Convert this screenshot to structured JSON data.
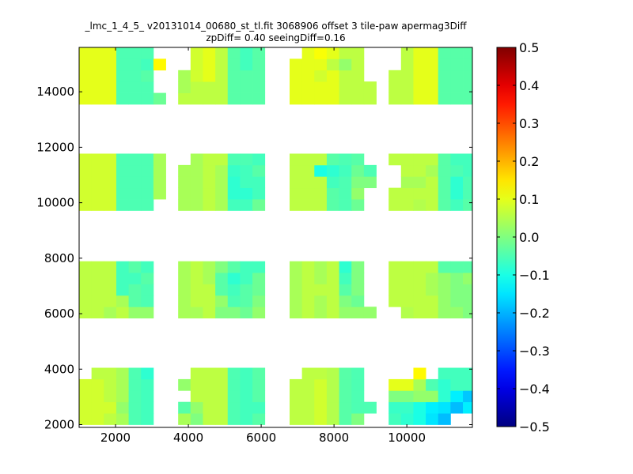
{
  "chart_data": {
    "type": "heatmap",
    "title": "_lmc_1_4_5_ v20131014_00680_st_tl.fit 3068906 offset 3 tile-paw apermag3Diff",
    "subtitle": "zpDiff= 0.40 seeingDiff=0.16",
    "xlabel": "",
    "ylabel": "",
    "xlim": [
      1000,
      11800
    ],
    "ylim": [
      1900,
      15600
    ],
    "xticks": [
      2000,
      4000,
      6000,
      8000,
      10000
    ],
    "yticks": [
      2000,
      4000,
      6000,
      8000,
      10000,
      12000,
      14000
    ],
    "colorbar": {
      "colormap": "jet",
      "range": [
        -0.5,
        0.5
      ],
      "ticks": [
        0.5,
        0.4,
        0.3,
        0.2,
        0.1,
        0.0,
        -0.1,
        -0.2,
        -0.3,
        -0.4,
        -0.5
      ],
      "tick_labels": [
        "0.5",
        "0.4",
        "0.3",
        "0.2",
        "0.1",
        "0.0",
        "−0.1",
        "−0.2",
        "−0.3",
        "−0.4",
        "−0.5"
      ]
    },
    "cell_size": [
      340,
      410
    ],
    "columns_x0": [
      1000,
      1340,
      1680,
      2020,
      2360,
      2700,
      3040,
      3720,
      4060,
      4400,
      4740,
      5080,
      5420,
      5760,
      6780,
      7120,
      7460,
      7800,
      8140,
      8480,
      8820,
      9500,
      9840,
      10180,
      10520,
      10860,
      11200,
      11540
    ],
    "rows_y0": [
      2000,
      2410,
      2820,
      3230,
      3640,
      5840,
      6250,
      6660,
      7070,
      7480,
      9720,
      10130,
      10540,
      10950,
      11360,
      13550,
      13960,
      14370,
      14780,
      15190
    ],
    "z_rows": [
      [
        0.08,
        0.08,
        0.06,
        0.04,
        -0.05,
        -0.06,
        null,
        0.04,
        0.0,
        0.06,
        0.06,
        -0.05,
        -0.06,
        -0.04,
        0.06,
        0.06,
        0.08,
        0.05,
        -0.04,
        0.0,
        null,
        -0.06,
        -0.08,
        -0.1,
        -0.15,
        -0.19,
        null,
        null
      ],
      [
        0.08,
        0.08,
        0.08,
        0.02,
        -0.05,
        -0.06,
        null,
        -0.04,
        0.02,
        0.06,
        0.06,
        -0.05,
        -0.06,
        -0.06,
        0.06,
        0.06,
        0.08,
        0.05,
        -0.04,
        -0.05,
        -0.05,
        -0.07,
        -0.07,
        -0.1,
        -0.14,
        -0.15,
        -0.19,
        -0.14
      ],
      [
        0.08,
        0.08,
        0.06,
        0.04,
        -0.05,
        -0.06,
        null,
        null,
        0.06,
        0.06,
        0.06,
        -0.05,
        -0.06,
        -0.04,
        0.06,
        0.06,
        0.08,
        0.05,
        -0.04,
        -0.05,
        null,
        0.0,
        0.0,
        0.02,
        0.02,
        -0.08,
        -0.14,
        -0.18
      ],
      [
        0.08,
        0.08,
        0.06,
        0.04,
        -0.05,
        -0.06,
        null,
        0.02,
        0.06,
        0.06,
        0.06,
        -0.05,
        -0.06,
        -0.04,
        0.06,
        0.06,
        0.08,
        0.05,
        -0.04,
        -0.05,
        null,
        0.1,
        0.1,
        0.04,
        -0.05,
        -0.08,
        -0.06,
        -0.06
      ],
      [
        null,
        0.06,
        0.06,
        0.04,
        -0.05,
        -0.08,
        null,
        null,
        0.06,
        0.06,
        0.06,
        -0.05,
        -0.06,
        -0.04,
        null,
        0.06,
        0.06,
        0.05,
        -0.04,
        -0.05,
        null,
        null,
        null,
        0.13,
        null,
        -0.06,
        -0.06,
        -0.06
      ],
      [
        0.06,
        0.06,
        0.04,
        0.06,
        0.02,
        0.02,
        null,
        0.04,
        0.04,
        0.06,
        0.0,
        0.0,
        -0.02,
        0.02,
        0.04,
        0.06,
        0.04,
        0.06,
        0.02,
        0.02,
        0.02,
        null,
        0.05,
        0.06,
        0.06,
        0.02,
        0.02,
        0.0
      ],
      [
        0.06,
        0.06,
        0.06,
        0.04,
        -0.04,
        -0.05,
        null,
        0.04,
        0.06,
        0.06,
        0.02,
        -0.05,
        -0.04,
        0.0,
        0.04,
        0.06,
        0.04,
        0.06,
        0.0,
        -0.02,
        null,
        0.06,
        0.06,
        0.06,
        0.06,
        0.02,
        0.0,
        0.0
      ],
      [
        0.06,
        0.06,
        0.06,
        -0.06,
        -0.04,
        -0.05,
        null,
        0.04,
        0.06,
        0.06,
        -0.04,
        -0.06,
        -0.04,
        -0.02,
        0.04,
        0.06,
        0.06,
        0.06,
        -0.04,
        0.0,
        null,
        0.06,
        0.06,
        0.06,
        0.04,
        0.02,
        0.0,
        0.0
      ],
      [
        0.06,
        0.06,
        0.06,
        -0.06,
        -0.06,
        -0.04,
        null,
        0.04,
        0.06,
        0.04,
        -0.04,
        -0.08,
        -0.06,
        -0.02,
        0.04,
        0.06,
        0.04,
        0.06,
        -0.06,
        0.0,
        null,
        0.06,
        0.06,
        0.06,
        0.04,
        0.02,
        0.0,
        0.02
      ],
      [
        0.06,
        0.06,
        0.06,
        -0.06,
        -0.04,
        -0.06,
        null,
        0.04,
        0.06,
        0.04,
        0.0,
        -0.04,
        -0.06,
        -0.06,
        0.04,
        0.06,
        0.04,
        0.06,
        -0.08,
        0.0,
        null,
        0.06,
        0.06,
        0.06,
        0.06,
        -0.04,
        -0.04,
        -0.04
      ],
      [
        0.08,
        0.08,
        0.08,
        -0.05,
        -0.05,
        -0.05,
        null,
        0.04,
        0.04,
        0.06,
        0.04,
        -0.06,
        -0.06,
        -0.02,
        0.06,
        0.06,
        0.06,
        -0.04,
        -0.05,
        -0.02,
        null,
        0.06,
        0.06,
        0.05,
        0.06,
        -0.04,
        -0.06,
        -0.04
      ],
      [
        0.08,
        0.08,
        0.08,
        -0.05,
        -0.05,
        -0.05,
        0.04,
        0.04,
        0.04,
        0.06,
        0.04,
        -0.08,
        -0.08,
        -0.06,
        0.06,
        0.06,
        0.06,
        -0.04,
        -0.05,
        0.02,
        null,
        0.06,
        0.06,
        0.06,
        0.06,
        -0.04,
        -0.08,
        -0.05
      ],
      [
        0.08,
        0.08,
        0.08,
        -0.05,
        -0.05,
        -0.05,
        0.04,
        0.04,
        0.04,
        0.06,
        0.04,
        -0.08,
        -0.06,
        -0.06,
        0.06,
        0.06,
        0.06,
        -0.06,
        -0.05,
        0.0,
        0.0,
        null,
        0.04,
        0.04,
        0.06,
        -0.04,
        -0.08,
        -0.05
      ],
      [
        0.08,
        0.08,
        0.08,
        -0.05,
        -0.05,
        -0.05,
        0.04,
        0.04,
        0.04,
        0.06,
        0.04,
        -0.07,
        -0.06,
        -0.04,
        0.06,
        0.06,
        -0.1,
        -0.08,
        -0.06,
        -0.02,
        -0.05,
        null,
        0.06,
        0.06,
        0.04,
        -0.04,
        -0.05,
        -0.06
      ],
      [
        0.08,
        0.08,
        0.08,
        -0.05,
        -0.05,
        -0.05,
        0.04,
        null,
        0.04,
        0.06,
        0.06,
        -0.05,
        -0.05,
        -0.06,
        0.06,
        0.06,
        0.06,
        -0.04,
        -0.05,
        -0.04,
        null,
        0.06,
        0.06,
        0.06,
        0.06,
        -0.04,
        -0.06,
        -0.06
      ],
      [
        0.1,
        0.1,
        0.1,
        -0.05,
        -0.05,
        -0.05,
        -0.02,
        0.06,
        0.06,
        0.06,
        0.06,
        -0.04,
        -0.04,
        -0.04,
        0.1,
        0.1,
        0.1,
        0.1,
        0.06,
        0.06,
        0.06,
        0.06,
        0.06,
        0.1,
        0.1,
        -0.04,
        -0.04,
        -0.04
      ],
      [
        0.1,
        0.1,
        0.1,
        -0.05,
        -0.05,
        -0.05,
        null,
        0.04,
        0.06,
        0.06,
        0.06,
        -0.04,
        -0.04,
        -0.04,
        0.1,
        0.1,
        0.1,
        0.1,
        0.06,
        0.06,
        0.06,
        0.06,
        0.06,
        0.1,
        0.1,
        -0.04,
        -0.04,
        -0.04
      ],
      [
        0.1,
        0.1,
        0.1,
        -0.05,
        -0.05,
        -0.04,
        null,
        0.04,
        0.08,
        0.1,
        0.06,
        -0.04,
        -0.04,
        -0.04,
        0.1,
        0.1,
        0.08,
        0.1,
        0.06,
        0.06,
        null,
        0.06,
        0.06,
        0.1,
        0.1,
        -0.04,
        -0.04,
        -0.04
      ],
      [
        0.1,
        0.1,
        0.1,
        -0.05,
        -0.05,
        -0.06,
        0.13,
        null,
        0.08,
        0.1,
        0.06,
        -0.04,
        -0.06,
        -0.04,
        0.1,
        0.1,
        0.1,
        0.06,
        0.02,
        0.06,
        null,
        null,
        0.06,
        0.1,
        0.1,
        -0.04,
        -0.04,
        -0.04
      ],
      [
        0.1,
        0.1,
        0.1,
        -0.05,
        -0.05,
        -0.05,
        null,
        null,
        0.08,
        0.1,
        0.06,
        -0.04,
        -0.06,
        -0.04,
        null,
        0.1,
        0.12,
        0.1,
        0.06,
        0.06,
        null,
        null,
        0.06,
        0.1,
        0.1,
        -0.04,
        -0.04,
        -0.04
      ]
    ]
  }
}
